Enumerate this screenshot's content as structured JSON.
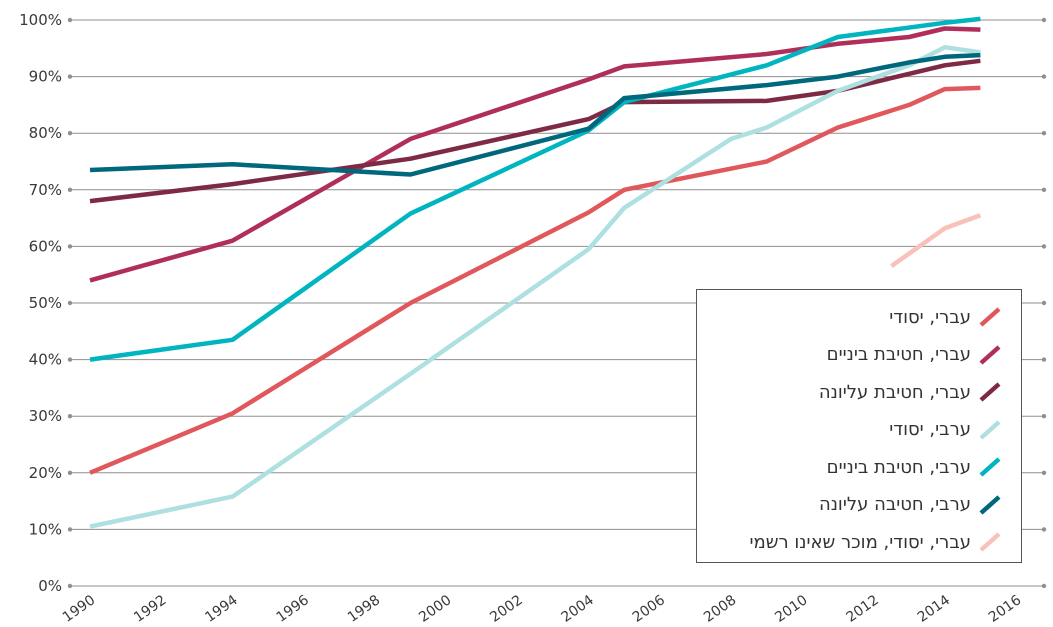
{
  "chart_data": {
    "type": "line",
    "title": "",
    "xlabel": "",
    "ylabel": "",
    "xlim": [
      1990,
      2016
    ],
    "ylim": [
      0,
      100
    ],
    "x_ticks": [
      "1990",
      "1992",
      "1994",
      "1996",
      "1998",
      "2000",
      "2002",
      "2004",
      "2006",
      "2008",
      "2010",
      "2012",
      "2014",
      "2016"
    ],
    "y_ticks": [
      "0%",
      "10%",
      "20%",
      "30%",
      "40%",
      "50%",
      "60%",
      "70%",
      "80%",
      "90%",
      "100%"
    ],
    "grid": true,
    "legend_position": "bottom-right",
    "series": [
      {
        "name": "עברי, יסודי",
        "color": "#e0585c",
        "points": [
          [
            1990,
            20
          ],
          [
            1994,
            30.5
          ],
          [
            1999,
            50
          ],
          [
            2004,
            66
          ],
          [
            2005,
            70
          ],
          [
            2009,
            75
          ],
          [
            2011,
            81
          ],
          [
            2013,
            85
          ],
          [
            2014,
            87.8
          ],
          [
            2015,
            88
          ]
        ]
      },
      {
        "name": "עברי, חטיבת ביניים",
        "color": "#b02f5a",
        "points": [
          [
            1990,
            54
          ],
          [
            1994,
            61
          ],
          [
            1999,
            79
          ],
          [
            2004,
            89.5
          ],
          [
            2005,
            91.8
          ],
          [
            2009,
            94
          ],
          [
            2011,
            95.8
          ],
          [
            2013,
            97
          ],
          [
            2014,
            98.5
          ],
          [
            2015,
            98.3
          ]
        ]
      },
      {
        "name": "עברי, חטיבת עליונה",
        "color": "#7d2a45",
        "points": [
          [
            1990,
            68
          ],
          [
            1994,
            71
          ],
          [
            1999,
            75.5
          ],
          [
            2004,
            82.5
          ],
          [
            2005,
            85.5
          ],
          [
            2009,
            85.7
          ],
          [
            2011,
            87.5
          ],
          [
            2013,
            90.5
          ],
          [
            2014,
            92
          ],
          [
            2015,
            92.8
          ]
        ]
      },
      {
        "name": "ערבי, יסודי",
        "color": "#aee0e2",
        "points": [
          [
            1990,
            10.5
          ],
          [
            1994,
            15.8
          ],
          [
            1999,
            37.5
          ],
          [
            2004,
            59.5
          ],
          [
            2005,
            66.8
          ],
          [
            2008,
            79
          ],
          [
            2009,
            81
          ],
          [
            2011,
            87.5
          ],
          [
            2013,
            92
          ],
          [
            2014,
            95.2
          ],
          [
            2015,
            94.3
          ]
        ]
      },
      {
        "name": "ערבי, חטיבת ביניים",
        "color": "#00b5c0",
        "points": [
          [
            1990,
            40
          ],
          [
            1994,
            43.5
          ],
          [
            1999,
            65.8
          ],
          [
            2004,
            80.5
          ],
          [
            2005,
            85.5
          ],
          [
            2009,
            92
          ],
          [
            2011,
            97
          ],
          [
            2014,
            99.5
          ],
          [
            2015,
            100.2
          ]
        ]
      },
      {
        "name": "ערבי, חטיבה עליונה",
        "color": "#00687c",
        "points": [
          [
            1990,
            73.5
          ],
          [
            1994,
            74.5
          ],
          [
            1999,
            72.7
          ],
          [
            2004,
            80.8
          ],
          [
            2005,
            86.2
          ],
          [
            2009,
            88.5
          ],
          [
            2011,
            90
          ],
          [
            2013,
            92.5
          ],
          [
            2014,
            93.5
          ],
          [
            2015,
            93.8
          ]
        ]
      },
      {
        "name": "עברי, יסודי, מוכר שאינו רשמי",
        "color": "#f8c2bb",
        "points": [
          [
            2012.5,
            56.5
          ],
          [
            2014,
            63.2
          ],
          [
            2015,
            65.5
          ]
        ]
      }
    ]
  }
}
